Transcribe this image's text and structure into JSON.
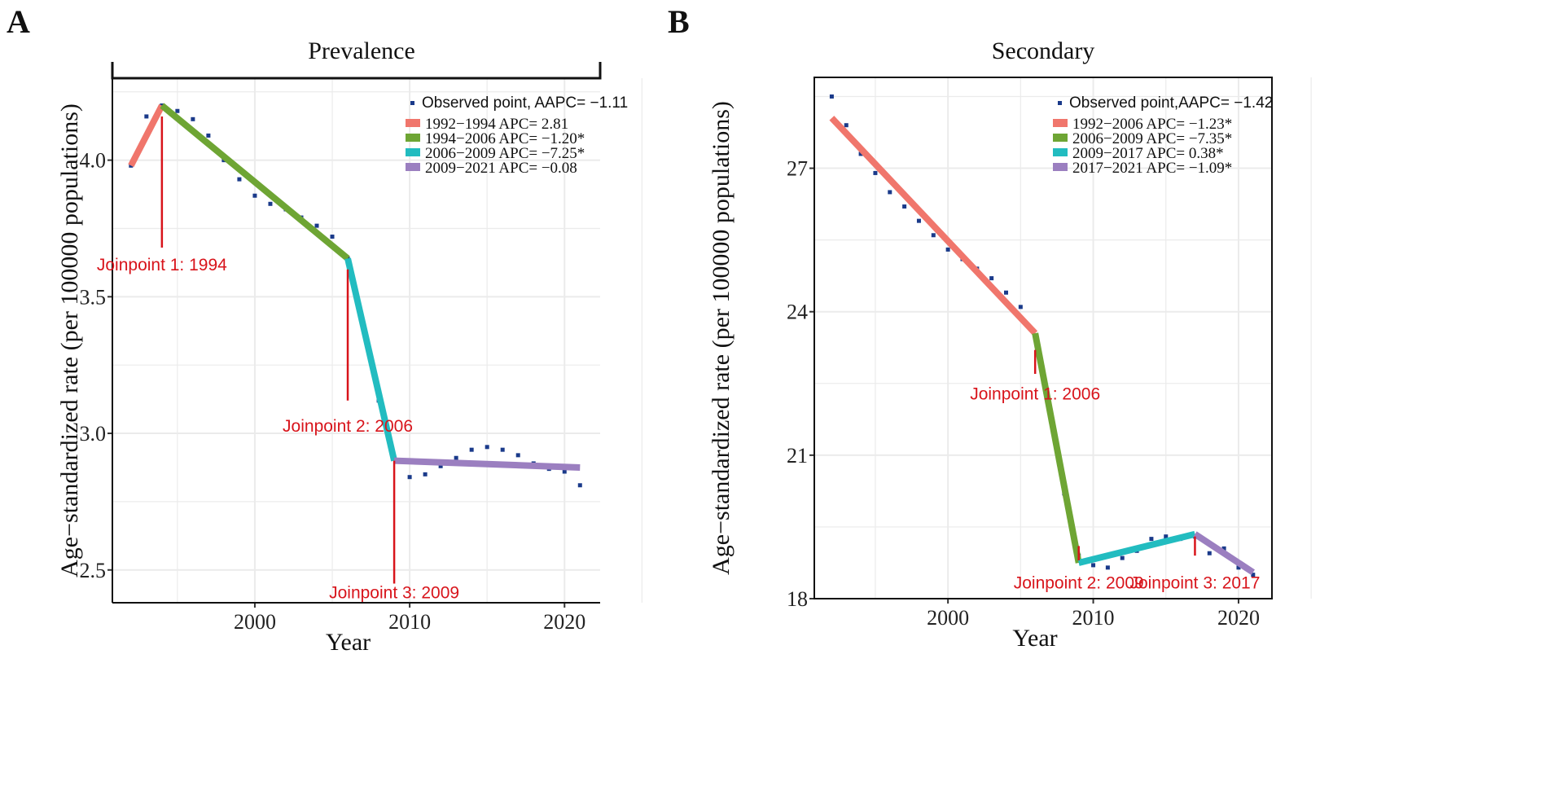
{
  "chart_data": [
    {
      "type": "line",
      "panel_label": "A",
      "title": "Prevalence",
      "xlabel": "Year",
      "ylabel": "Age−standardized rate (per 100000 populations)",
      "xlim": [
        1990.8,
        2022.3
      ],
      "ylim": [
        2.38,
        4.3
      ],
      "xticks": [
        2000,
        2010,
        2020
      ],
      "yticks": [
        2.5,
        3.0,
        3.5,
        4.0
      ],
      "ytick_labels": [
        "2.5",
        "3.0",
        "3.5",
        "4.0"
      ],
      "legend_position": "top-right",
      "observed": {
        "label": "Observed point, AAPC= −1.11",
        "x": [
          1992,
          1993,
          1994,
          1995,
          1996,
          1997,
          1998,
          1999,
          2000,
          2001,
          2002,
          2003,
          2004,
          2005,
          2006,
          2007,
          2008,
          2009,
          2010,
          2011,
          2012,
          2013,
          2014,
          2015,
          2016,
          2017,
          2018,
          2019,
          2020,
          2021
        ],
        "y": [
          3.98,
          4.16,
          4.2,
          4.18,
          4.15,
          4.09,
          4.0,
          3.93,
          3.87,
          3.84,
          3.82,
          3.79,
          3.76,
          3.72,
          3.64,
          3.38,
          3.12,
          2.91,
          2.84,
          2.85,
          2.88,
          2.91,
          2.94,
          2.95,
          2.94,
          2.92,
          2.89,
          2.87,
          2.86,
          2.81
        ]
      },
      "segments": [
        {
          "label": "1992−1994 APC= 2.81",
          "color": "#f0766c",
          "x": [
            1992,
            1994
          ],
          "y": [
            3.98,
            4.2
          ]
        },
        {
          "label": "1994−2006 APC= −1.20*",
          "color": "#6ea534",
          "x": [
            1994,
            2006
          ],
          "y": [
            4.2,
            3.64
          ]
        },
        {
          "label": "2006−2009 APC= −7.25*",
          "color": "#22bcc0",
          "x": [
            2006,
            2009
          ],
          "y": [
            3.64,
            2.9
          ]
        },
        {
          "label": "2009−2021 APC= −0.08",
          "color": "#9b7fc0",
          "x": [
            2009,
            2021
          ],
          "y": [
            2.9,
            2.875
          ]
        }
      ],
      "joinpoints": [
        {
          "label": "Joinpoint 1: 1994",
          "x": 1994,
          "y_top": 4.16,
          "y_bottom": 3.68,
          "label_y": 3.62
        },
        {
          "label": "Joinpoint 2: 2006",
          "x": 2006,
          "y_top": 3.6,
          "y_bottom": 3.12,
          "label_y": 3.03
        },
        {
          "label": "Joinpoint 3: 2009",
          "x": 2009,
          "y_top": 2.9,
          "y_bottom": 2.45,
          "label_y": 2.42
        }
      ]
    },
    {
      "type": "line",
      "panel_label": "B",
      "title": "Secondary",
      "xlabel": "Year",
      "ylabel": "Age−standardized rate (per 100000 populations)",
      "xlim": [
        1990.8,
        2022.3
      ],
      "ylim": [
        18,
        28.9
      ],
      "xticks": [
        2000,
        2010,
        2020
      ],
      "yticks": [
        18,
        21,
        24,
        27
      ],
      "ytick_labels": [
        "18",
        "21",
        "24",
        "27"
      ],
      "legend_position": "top-right",
      "observed": {
        "label": "Observed point,AAPC= −1.42",
        "x": [
          1992,
          1993,
          1994,
          1995,
          1996,
          1997,
          1998,
          1999,
          2000,
          2001,
          2002,
          2003,
          2004,
          2005,
          2006,
          2007,
          2008,
          2009,
          2010,
          2011,
          2012,
          2013,
          2014,
          2015,
          2016,
          2017,
          2018,
          2019,
          2020,
          2021
        ],
        "y": [
          28.5,
          27.9,
          27.3,
          26.9,
          26.5,
          26.2,
          25.9,
          25.6,
          25.3,
          25.1,
          24.9,
          24.7,
          24.4,
          24.1,
          23.5,
          21.9,
          20.2,
          18.9,
          18.7,
          18.65,
          18.85,
          19.0,
          19.25,
          19.3,
          19.25,
          19.3,
          18.95,
          19.05,
          18.65,
          18.5
        ]
      },
      "segments": [
        {
          "label": "1992−2006 APC= −1.23*",
          "color": "#f0766c",
          "x": [
            1992,
            2006
          ],
          "y": [
            28.05,
            23.55
          ]
        },
        {
          "label": "2006−2009 APC= −7.35*",
          "color": "#6ea534",
          "x": [
            2006,
            2009
          ],
          "y": [
            23.55,
            18.75
          ]
        },
        {
          "label": "2009−2017 APC= 0.38*",
          "color": "#22bcc0",
          "x": [
            2009,
            2017
          ],
          "y": [
            18.75,
            19.35
          ]
        },
        {
          "label": "2017−2021 APC= −1.09*",
          "color": "#9b7fc0",
          "x": [
            2017,
            2021
          ],
          "y": [
            19.35,
            18.55
          ]
        }
      ],
      "joinpoints": [
        {
          "label": "Joinpoint 1: 2006",
          "x": 2006,
          "y_top": 23.2,
          "y_bottom": 22.7,
          "label_y": 22.3
        },
        {
          "label": "Joinpoint 2: 2009",
          "x": 2009,
          "y_top": 19.1,
          "y_bottom": 18.8,
          "label_y": 18.35
        },
        {
          "label": "Joinpoint 3: 2017",
          "x": 2017,
          "y_top": 19.3,
          "y_bottom": 18.9,
          "label_y": 18.35
        }
      ]
    }
  ]
}
